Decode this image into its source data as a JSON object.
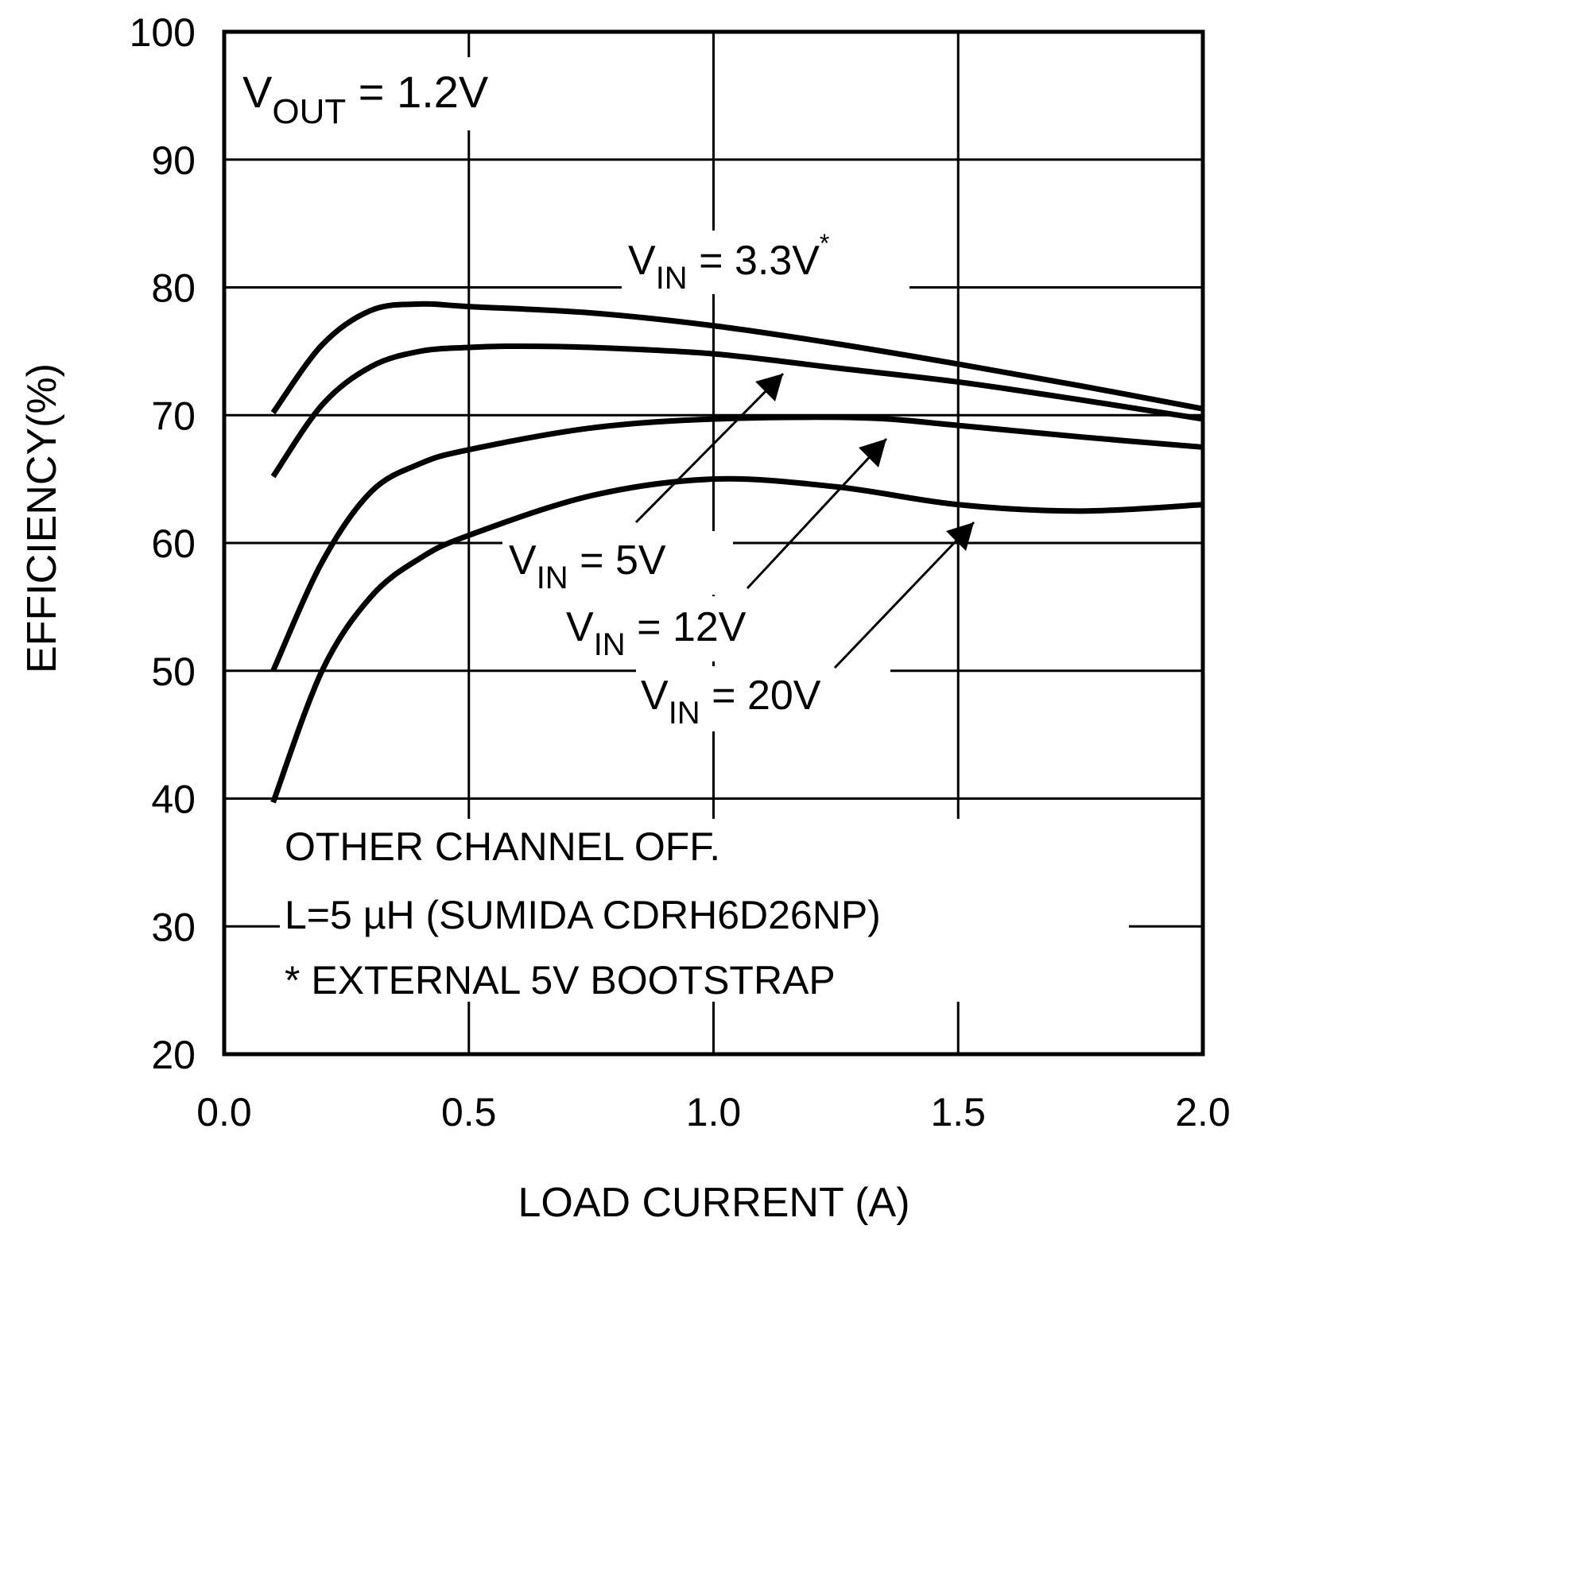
{
  "chart_data": {
    "type": "line",
    "xlabel": "LOAD CURRENT (A)",
    "ylabel": "EFFICIENCY(%)",
    "xlim": [
      0.0,
      2.0
    ],
    "ylim": [
      20,
      100
    ],
    "xticks": [
      "0.0",
      "0.5",
      "1.0",
      "1.5",
      "2.0"
    ],
    "yticks": [
      "20",
      "30",
      "40",
      "50",
      "60",
      "70",
      "80",
      "90",
      "100"
    ],
    "grid": true,
    "line_color": "#000000",
    "series": [
      {
        "name_main": "V",
        "name_sub": "IN",
        "name_rest": " = 3.3V",
        "name_sup": "*",
        "x": [
          0.1,
          0.2,
          0.3,
          0.4,
          0.5,
          0.75,
          1.0,
          1.25,
          1.5,
          1.75,
          2.0
        ],
        "y": [
          70.2,
          75.5,
          78.2,
          78.7,
          78.5,
          78.0,
          77.0,
          75.6,
          74.0,
          72.3,
          70.5
        ]
      },
      {
        "name_main": "V",
        "name_sub": "IN",
        "name_rest": " = 5V",
        "x": [
          0.1,
          0.2,
          0.3,
          0.4,
          0.5,
          0.6,
          0.75,
          1.0,
          1.25,
          1.5,
          1.75,
          2.0
        ],
        "y": [
          65.2,
          70.8,
          73.8,
          75.0,
          75.3,
          75.4,
          75.3,
          74.8,
          73.7,
          72.6,
          71.2,
          69.7
        ]
      },
      {
        "name_main": "V",
        "name_sub": "IN",
        "name_rest": " = 12V",
        "x": [
          0.1,
          0.2,
          0.3,
          0.4,
          0.5,
          0.75,
          1.0,
          1.3,
          1.5,
          1.75,
          2.0
        ],
        "y": [
          50.0,
          58.5,
          64.0,
          66.2,
          67.3,
          69.0,
          69.7,
          69.8,
          69.2,
          68.3,
          67.5
        ]
      },
      {
        "name_main": "V",
        "name_sub": "IN",
        "name_rest": " = 20V",
        "x": [
          0.1,
          0.2,
          0.3,
          0.4,
          0.5,
          0.75,
          1.0,
          1.25,
          1.5,
          1.75,
          2.0
        ],
        "y": [
          39.7,
          50.0,
          55.8,
          58.8,
          60.6,
          63.7,
          65.0,
          64.4,
          63.0,
          62.5,
          63.0
        ]
      }
    ],
    "annotations": {
      "vout_main": "V",
      "vout_sub": "OUT",
      "vout_rest": " = 1.2V",
      "note_lines": [
        "OTHER CHANNEL OFF.",
        "L=5 µH (SUMIDA CDRH6D26NP)",
        "* EXTERNAL 5V BOOTSTRAP"
      ]
    }
  }
}
